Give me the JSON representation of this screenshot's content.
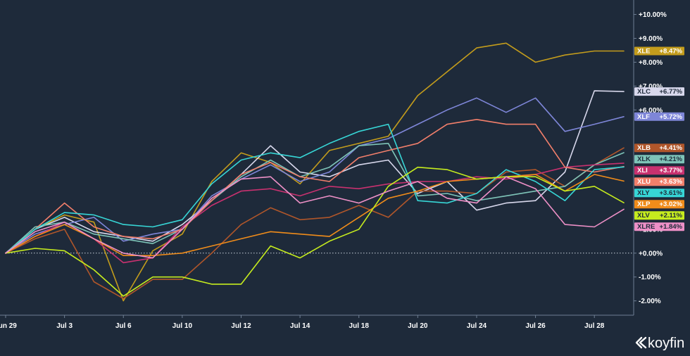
{
  "chart_data": {
    "type": "line",
    "title": "",
    "xlabel": "",
    "ylabel": "",
    "x": [
      0,
      1,
      2,
      3,
      4,
      5,
      6,
      7,
      8,
      9,
      10,
      11,
      12,
      13,
      14,
      15,
      16,
      17,
      18,
      19,
      20,
      21
    ],
    "x_tick_labels": [
      {
        "i": 0,
        "label": "Jun 29"
      },
      {
        "i": 2,
        "label": "Jul 3"
      },
      {
        "i": 4,
        "label": "Jul 6"
      },
      {
        "i": 6,
        "label": "Jul 10"
      },
      {
        "i": 8,
        "label": "Jul 12"
      },
      {
        "i": 10,
        "label": "Jul 14"
      },
      {
        "i": 12,
        "label": "Jul 18"
      },
      {
        "i": 14,
        "label": "Jul 20"
      },
      {
        "i": 16,
        "label": "Jul 24"
      },
      {
        "i": 18,
        "label": "Jul 26"
      },
      {
        "i": 20,
        "label": "Jul 28"
      }
    ],
    "ylim": [
      -2.6,
      10.4
    ],
    "y_ticks": [
      {
        "v": 10,
        "label": "+10.00%"
      },
      {
        "v": 9,
        "label": "+9.00%"
      },
      {
        "v": 8,
        "label": "+8.00%"
      },
      {
        "v": 7,
        "label": "+7.00%"
      },
      {
        "v": 6,
        "label": "+6.00%"
      },
      {
        "v": 1,
        "label": "+1.00%"
      },
      {
        "v": 0,
        "label": "+0.00%"
      },
      {
        "v": -1,
        "label": "-1.00%"
      },
      {
        "v": -2,
        "label": "-2.00%"
      }
    ],
    "zero_line": true,
    "grid": false,
    "legend": "right-axis",
    "series": [
      {
        "name": "XLE",
        "value_label": "+8.47%",
        "color": "#c39c1c",
        "text_color": "#ffffff",
        "values": [
          0,
          1.0,
          1.6,
          1.3,
          -2.0,
          0.1,
          0.8,
          3.0,
          4.2,
          3.8,
          2.9,
          4.3,
          4.6,
          4.9,
          6.6,
          7.6,
          8.6,
          8.8,
          8.0,
          8.3,
          8.47,
          8.47
        ]
      },
      {
        "name": "XLC",
        "value_label": "+6.77%",
        "color": "#d8d8ec",
        "text_color": "#1e2a3a",
        "values": [
          0,
          1.0,
          1.5,
          0.9,
          0.7,
          0.5,
          1.2,
          2.2,
          3.3,
          4.5,
          3.4,
          3.2,
          3.7,
          3.9,
          2.5,
          3.0,
          1.8,
          2.1,
          2.2,
          3.4,
          6.8,
          6.77
        ]
      },
      {
        "name": "XLF",
        "value_label": "+5.72%",
        "color": "#7e86d8",
        "text_color": "#ffffff",
        "values": [
          0,
          0.8,
          1.2,
          1.5,
          0.5,
          0.8,
          1.0,
          2.4,
          3.1,
          3.7,
          3.0,
          3.4,
          4.5,
          4.8,
          5.4,
          6.0,
          6.5,
          5.9,
          6.5,
          5.1,
          5.4,
          5.72
        ]
      },
      {
        "name": "XLB",
        "value_label": "+4.41%",
        "color": "#b0562a",
        "text_color": "#ffffff",
        "values": [
          0,
          0.6,
          1.0,
          -1.2,
          -1.9,
          -1.1,
          -1.1,
          0.0,
          1.2,
          1.9,
          1.4,
          1.5,
          2.0,
          1.5,
          2.6,
          2.6,
          2.5,
          3.4,
          3.5,
          2.8,
          3.7,
          4.41
        ]
      },
      {
        "name": "XLK",
        "value_label": "+4.21%",
        "color": "#7ec4b8",
        "text_color": "#1e2a3a",
        "values": [
          0,
          1.1,
          1.3,
          0.8,
          0.6,
          0.4,
          1.0,
          2.2,
          3.2,
          3.9,
          3.2,
          3.6,
          4.5,
          4.6,
          2.4,
          2.5,
          2.2,
          2.4,
          2.6,
          2.8,
          3.7,
          4.21
        ]
      },
      {
        "name": "XLI",
        "value_label": "+3.77%",
        "color": "#c8316f",
        "text_color": "#ffffff",
        "values": [
          0,
          0.7,
          1.3,
          0.6,
          -0.4,
          -0.2,
          1.1,
          2.0,
          2.6,
          2.7,
          2.4,
          2.8,
          2.7,
          2.9,
          3.0,
          3.0,
          3.2,
          3.1,
          3.3,
          3.6,
          3.7,
          3.77
        ]
      },
      {
        "name": "XLU",
        "value_label": "+3.63%",
        "color": "#f27f6b",
        "text_color": "#ffffff",
        "values": [
          0,
          1.0,
          2.1,
          1.1,
          0.7,
          0.6,
          1.0,
          2.2,
          3.3,
          3.8,
          3.2,
          3.0,
          4.0,
          4.3,
          4.6,
          5.4,
          5.6,
          5.4,
          5.4,
          3.6,
          3.4,
          3.63
        ]
      },
      {
        "name": "XLY",
        "value_label": "+3.61%",
        "color": "#37d6d6",
        "text_color": "#1e2a3a",
        "values": [
          0,
          1.0,
          1.7,
          1.6,
          1.2,
          1.1,
          1.4,
          2.9,
          3.9,
          4.2,
          4.0,
          4.6,
          5.1,
          5.4,
          2.2,
          2.1,
          2.5,
          3.5,
          3.0,
          2.2,
          3.5,
          3.61
        ]
      },
      {
        "name": "XLP",
        "value_label": "+3.02%",
        "color": "#f08c1a",
        "text_color": "#ffffff",
        "values": [
          0,
          0.7,
          1.2,
          0.6,
          -0.1,
          -0.1,
          0.0,
          0.3,
          0.6,
          0.9,
          0.8,
          0.7,
          1.5,
          2.3,
          2.6,
          3.0,
          3.1,
          3.2,
          3.3,
          2.6,
          3.3,
          3.02
        ]
      },
      {
        "name": "XLV",
        "value_label": "+2.11%",
        "color": "#c6ec1e",
        "text_color": "#1e2a3a",
        "values": [
          0,
          0.2,
          0.1,
          -0.7,
          -1.8,
          -1.0,
          -1.0,
          -1.3,
          -1.3,
          0.3,
          -0.2,
          0.5,
          1.0,
          2.8,
          3.6,
          3.5,
          3.1,
          3.2,
          3.2,
          2.6,
          2.8,
          2.11
        ]
      },
      {
        "name": "XLRE",
        "value_label": "+1.84%",
        "color": "#ee90c7",
        "text_color": "#1e2a3a",
        "values": [
          0,
          0.9,
          1.3,
          0.6,
          0.0,
          -0.2,
          1.0,
          2.3,
          3.1,
          3.2,
          2.1,
          2.4,
          2.1,
          2.6,
          3.0,
          2.3,
          2.1,
          3.2,
          2.7,
          1.2,
          1.1,
          1.84
        ]
      }
    ]
  },
  "brand": {
    "name": "koyfin"
  }
}
